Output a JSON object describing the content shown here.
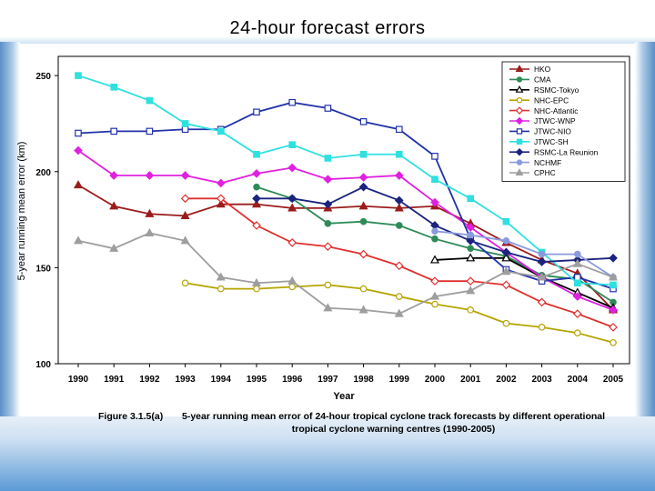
{
  "slide": {
    "title": "24-hour forecast errors",
    "caption_label": "Figure 3.1.5(a)",
    "caption_line1": "5-year running mean error of 24-hour tropical cyclone track forecasts by different operational",
    "caption_line2": "tropical cyclone warning centres (1990-2005)"
  },
  "chart_data": {
    "type": "line",
    "title": "",
    "xlabel": "Year",
    "ylabel": "5-year running mean error (km)",
    "ylim": [
      100,
      260
    ],
    "yticks": [
      100,
      150,
      200,
      250
    ],
    "grid": false,
    "legend_position": "top-right",
    "categories": [
      "1990",
      "1991",
      "1992",
      "1993",
      "1994",
      "1995",
      "1996",
      "1997",
      "1998",
      "1999",
      "2000",
      "2001",
      "2002",
      "2003",
      "2004",
      "2005"
    ],
    "series": [
      {
        "name": "HKO",
        "color": "#9b1c1c",
        "marker": "triangle",
        "filled": true,
        "values": [
          193,
          182,
          178,
          177,
          183,
          183,
          181,
          181,
          182,
          181,
          182,
          173,
          163,
          154,
          147,
          128
        ]
      },
      {
        "name": "CMA",
        "color": "#2e8b57",
        "marker": "circle",
        "filled": true,
        "values": [
          null,
          null,
          null,
          null,
          null,
          192,
          186,
          173,
          174,
          172,
          165,
          160,
          156,
          146,
          144,
          132
        ]
      },
      {
        "name": "RSMC-Tokyo",
        "color": "#000000",
        "marker": "triangle",
        "filled": false,
        "values": [
          null,
          null,
          null,
          null,
          null,
          null,
          null,
          null,
          null,
          null,
          154,
          155,
          155,
          145,
          137,
          129
        ]
      },
      {
        "name": "NHC-EPC",
        "color": "#b5a400",
        "marker": "circle",
        "filled": false,
        "values": [
          null,
          null,
          null,
          142,
          139,
          139,
          140,
          141,
          139,
          135,
          131,
          128,
          121,
          119,
          116,
          111
        ]
      },
      {
        "name": "NHC-Atlantic",
        "color": "#e03030",
        "marker": "diamond",
        "filled": false,
        "values": [
          null,
          null,
          null,
          186,
          186,
          172,
          163,
          161,
          157,
          151,
          143,
          143,
          141,
          132,
          126,
          119
        ]
      },
      {
        "name": "JTWC-WNP",
        "color": "#e020e0",
        "marker": "diamond",
        "filled": true,
        "values": [
          211,
          198,
          198,
          198,
          194,
          199,
          202,
          196,
          197,
          198,
          184,
          171,
          158,
          145,
          135,
          128
        ]
      },
      {
        "name": "JTWC-NIO",
        "color": "#2233aa",
        "marker": "square",
        "filled": false,
        "values": [
          220,
          221,
          221,
          222,
          222,
          231,
          236,
          233,
          226,
          222,
          208,
          165,
          149,
          143,
          145,
          139
        ]
      },
      {
        "name": "JTWC-SH",
        "color": "#2ee0e0",
        "marker": "square",
        "filled": true,
        "values": [
          250,
          244,
          237,
          225,
          221,
          209,
          214,
          207,
          209,
          209,
          196,
          186,
          174,
          158,
          142,
          141
        ]
      },
      {
        "name": "RSMC-La Reunion",
        "color": "#1a237e",
        "marker": "diamond",
        "filled": true,
        "values": [
          null,
          null,
          null,
          null,
          null,
          186,
          186,
          183,
          192,
          185,
          172,
          164,
          158,
          153,
          154,
          155
        ]
      },
      {
        "name": "NCHMF",
        "color": "#8a9adf",
        "marker": "circle",
        "filled": true,
        "values": [
          null,
          null,
          null,
          null,
          null,
          null,
          null,
          null,
          null,
          null,
          169,
          167,
          164,
          157,
          157,
          145
        ]
      },
      {
        "name": "CPHC",
        "color": "#9e9e9e",
        "marker": "triangle",
        "filled": true,
        "values": [
          164,
          160,
          168,
          164,
          145,
          142,
          143,
          129,
          128,
          126,
          135,
          138,
          148,
          145,
          152,
          145
        ]
      }
    ]
  }
}
